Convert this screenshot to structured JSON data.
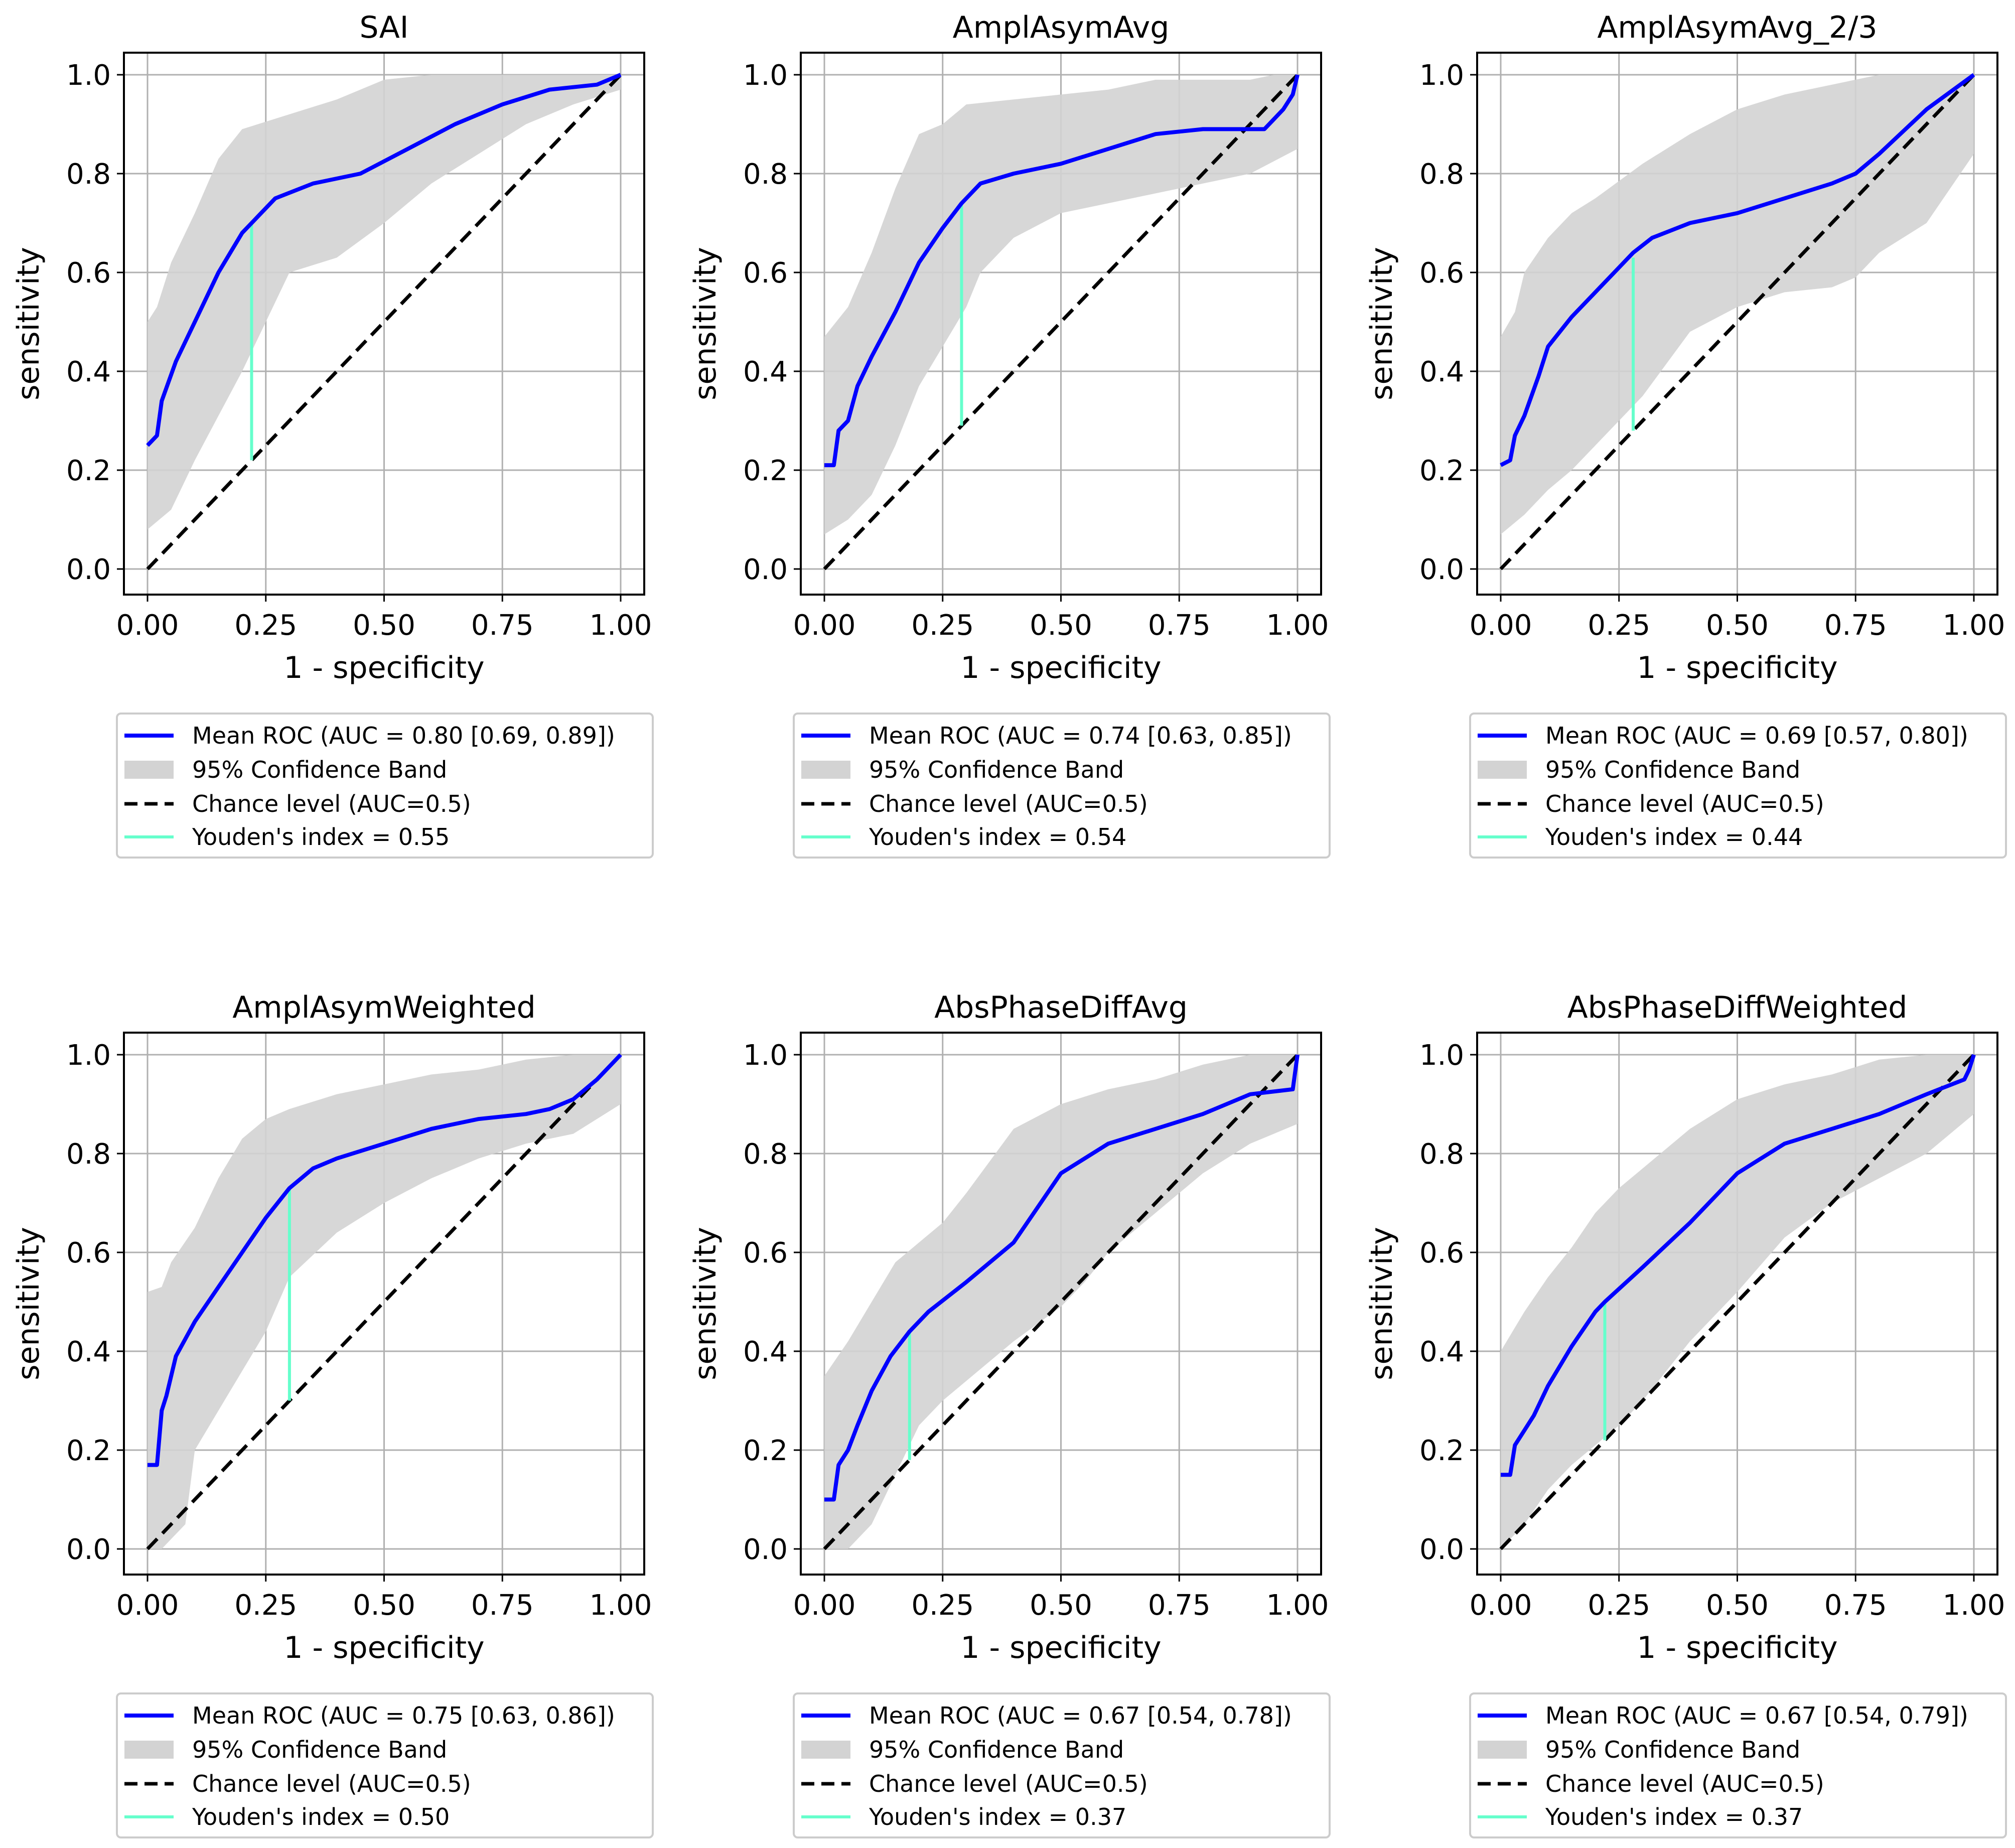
{
  "figure": {
    "colors": {
      "roc": "#0000ff",
      "band": "#d3d3d3",
      "chance": "#000000",
      "youden": "#66ffcc",
      "grid": "#b0b0b0",
      "legend_border": "#cccccc"
    }
  },
  "chart_data": [
    {
      "type": "line",
      "title": "SAI",
      "xlabel": "1 - specificity",
      "ylabel": "sensitivity",
      "xlim": [
        0,
        1
      ],
      "ylim": [
        0,
        1
      ],
      "xticks": [
        "0.00",
        "0.25",
        "0.50",
        "0.75",
        "1.00"
      ],
      "yticks": [
        "0.0",
        "0.2",
        "0.4",
        "0.6",
        "0.8",
        "1.0"
      ],
      "grid": true,
      "legend_position": "below",
      "legend": [
        "Mean ROC (AUC = 0.80 [0.69, 0.89])",
        "95% Confidence Band",
        "Chance level (AUC=0.5)",
        "Youden's index = 0.55"
      ],
      "mean_roc": {
        "x": [
          0,
          0.02,
          0.03,
          0.06,
          0.1,
          0.15,
          0.2,
          0.22,
          0.27,
          0.35,
          0.45,
          0.55,
          0.65,
          0.75,
          0.85,
          0.95,
          1.0
        ],
        "y": [
          0.25,
          0.27,
          0.34,
          0.42,
          0.5,
          0.6,
          0.68,
          0.7,
          0.75,
          0.78,
          0.8,
          0.85,
          0.9,
          0.94,
          0.97,
          0.98,
          1.0
        ]
      },
      "band_upper": {
        "x": [
          0,
          0.02,
          0.05,
          0.1,
          0.15,
          0.2,
          0.3,
          0.4,
          0.5,
          0.6,
          0.7,
          0.8,
          0.9,
          1.0
        ],
        "y": [
          0.5,
          0.53,
          0.62,
          0.72,
          0.83,
          0.89,
          0.92,
          0.95,
          0.99,
          1.0,
          1.0,
          1.0,
          1.0,
          1.0
        ]
      },
      "band_lower": {
        "x": [
          0,
          0.05,
          0.1,
          0.15,
          0.2,
          0.25,
          0.3,
          0.4,
          0.5,
          0.6,
          0.7,
          0.8,
          0.9,
          1.0
        ],
        "y": [
          0.08,
          0.12,
          0.22,
          0.31,
          0.4,
          0.5,
          0.6,
          0.63,
          0.7,
          0.78,
          0.84,
          0.9,
          0.94,
          0.97
        ]
      },
      "youden": {
        "x": 0.22,
        "y_from": 0.22,
        "y_to": 0.7
      }
    },
    {
      "type": "line",
      "title": "AmplAsymAvg",
      "xlabel": "1 - specificity",
      "ylabel": "sensitivity",
      "xlim": [
        0,
        1
      ],
      "ylim": [
        0,
        1
      ],
      "xticks": [
        "0.00",
        "0.25",
        "0.50",
        "0.75",
        "1.00"
      ],
      "yticks": [
        "0.0",
        "0.2",
        "0.4",
        "0.6",
        "0.8",
        "1.0"
      ],
      "grid": true,
      "legend_position": "below",
      "legend": [
        "Mean ROC (AUC = 0.74 [0.63, 0.85])",
        "95% Confidence Band",
        "Chance level (AUC=0.5)",
        "Youden's index = 0.54"
      ],
      "mean_roc": {
        "x": [
          0,
          0.02,
          0.03,
          0.05,
          0.07,
          0.1,
          0.15,
          0.2,
          0.25,
          0.29,
          0.33,
          0.4,
          0.5,
          0.6,
          0.7,
          0.8,
          0.88,
          0.93,
          0.97,
          0.99,
          1.0
        ],
        "y": [
          0.21,
          0.21,
          0.28,
          0.3,
          0.37,
          0.43,
          0.52,
          0.62,
          0.69,
          0.74,
          0.78,
          0.8,
          0.82,
          0.85,
          0.88,
          0.89,
          0.89,
          0.89,
          0.93,
          0.96,
          1.0
        ]
      },
      "band_upper": {
        "x": [
          0,
          0.05,
          0.1,
          0.15,
          0.2,
          0.25,
          0.3,
          0.4,
          0.5,
          0.6,
          0.7,
          0.8,
          0.9,
          0.95,
          1.0
        ],
        "y": [
          0.47,
          0.53,
          0.64,
          0.77,
          0.88,
          0.9,
          0.94,
          0.95,
          0.96,
          0.97,
          0.99,
          0.99,
          0.99,
          1.0,
          1.0
        ]
      },
      "band_lower": {
        "x": [
          0,
          0.05,
          0.1,
          0.15,
          0.2,
          0.25,
          0.3,
          0.33,
          0.4,
          0.5,
          0.6,
          0.7,
          0.8,
          0.9,
          1.0
        ],
        "y": [
          0.07,
          0.1,
          0.15,
          0.25,
          0.37,
          0.45,
          0.53,
          0.6,
          0.67,
          0.72,
          0.74,
          0.76,
          0.78,
          0.8,
          0.85
        ]
      },
      "youden": {
        "x": 0.29,
        "y_from": 0.29,
        "y_to": 0.74
      }
    },
    {
      "type": "line",
      "title": "AmplAsymAvg_2/3",
      "xlabel": "1 - specificity",
      "ylabel": "sensitivity",
      "xlim": [
        0,
        1
      ],
      "ylim": [
        0,
        1
      ],
      "xticks": [
        "0.00",
        "0.25",
        "0.50",
        "0.75",
        "1.00"
      ],
      "yticks": [
        "0.0",
        "0.2",
        "0.4",
        "0.6",
        "0.8",
        "1.0"
      ],
      "grid": true,
      "legend_position": "below",
      "legend": [
        "Mean ROC (AUC = 0.69 [0.57, 0.80])",
        "95% Confidence Band",
        "Chance level (AUC=0.5)",
        "Youden's index = 0.44"
      ],
      "mean_roc": {
        "x": [
          0,
          0.02,
          0.03,
          0.05,
          0.08,
          0.1,
          0.15,
          0.2,
          0.25,
          0.28,
          0.32,
          0.4,
          0.5,
          0.6,
          0.7,
          0.75,
          0.8,
          0.9,
          1.0
        ],
        "y": [
          0.21,
          0.22,
          0.27,
          0.31,
          0.39,
          0.45,
          0.51,
          0.56,
          0.61,
          0.64,
          0.67,
          0.7,
          0.72,
          0.75,
          0.78,
          0.8,
          0.84,
          0.93,
          1.0
        ]
      },
      "band_upper": {
        "x": [
          0,
          0.03,
          0.05,
          0.1,
          0.15,
          0.2,
          0.3,
          0.4,
          0.5,
          0.6,
          0.7,
          0.8,
          0.9,
          1.0
        ],
        "y": [
          0.47,
          0.52,
          0.6,
          0.67,
          0.72,
          0.75,
          0.82,
          0.88,
          0.93,
          0.96,
          0.98,
          1.0,
          1.0,
          1.0
        ]
      },
      "band_lower": {
        "x": [
          0,
          0.05,
          0.1,
          0.15,
          0.2,
          0.25,
          0.3,
          0.4,
          0.5,
          0.6,
          0.7,
          0.75,
          0.8,
          0.9,
          1.0
        ],
        "y": [
          0.07,
          0.11,
          0.16,
          0.2,
          0.25,
          0.3,
          0.35,
          0.48,
          0.53,
          0.56,
          0.57,
          0.59,
          0.64,
          0.7,
          0.84
        ]
      },
      "youden": {
        "x": 0.28,
        "y_from": 0.28,
        "y_to": 0.63
      }
    },
    {
      "type": "line",
      "title": "AmplAsymWeighted",
      "xlabel": "1 - specificity",
      "ylabel": "sensitivity",
      "xlim": [
        0,
        1
      ],
      "ylim": [
        0,
        1
      ],
      "xticks": [
        "0.00",
        "0.25",
        "0.50",
        "0.75",
        "1.00"
      ],
      "yticks": [
        "0.0",
        "0.2",
        "0.4",
        "0.6",
        "0.8",
        "1.0"
      ],
      "grid": true,
      "legend_position": "below",
      "legend": [
        "Mean ROC (AUC = 0.75 [0.63, 0.86])",
        "95% Confidence Band",
        "Chance level (AUC=0.5)",
        "Youden's index = 0.50"
      ],
      "mean_roc": {
        "x": [
          0,
          0.02,
          0.03,
          0.04,
          0.06,
          0.1,
          0.15,
          0.2,
          0.25,
          0.3,
          0.35,
          0.4,
          0.5,
          0.6,
          0.7,
          0.8,
          0.85,
          0.9,
          0.95,
          1.0
        ],
        "y": [
          0.17,
          0.17,
          0.28,
          0.31,
          0.39,
          0.46,
          0.53,
          0.6,
          0.67,
          0.73,
          0.77,
          0.79,
          0.82,
          0.85,
          0.87,
          0.88,
          0.89,
          0.91,
          0.95,
          1.0
        ]
      },
      "band_upper": {
        "x": [
          0,
          0.03,
          0.05,
          0.1,
          0.15,
          0.2,
          0.25,
          0.3,
          0.4,
          0.5,
          0.6,
          0.7,
          0.8,
          0.9,
          1.0
        ],
        "y": [
          0.52,
          0.53,
          0.58,
          0.65,
          0.75,
          0.83,
          0.87,
          0.89,
          0.92,
          0.94,
          0.96,
          0.97,
          0.99,
          1.0,
          1.0
        ]
      },
      "band_lower": {
        "x": [
          0,
          0.03,
          0.05,
          0.08,
          0.1,
          0.15,
          0.2,
          0.25,
          0.3,
          0.4,
          0.5,
          0.6,
          0.7,
          0.8,
          0.9,
          1.0
        ],
        "y": [
          0.0,
          0.0,
          0.02,
          0.05,
          0.2,
          0.28,
          0.36,
          0.44,
          0.55,
          0.64,
          0.7,
          0.75,
          0.79,
          0.82,
          0.84,
          0.9
        ]
      },
      "youden": {
        "x": 0.3,
        "y_from": 0.3,
        "y_to": 0.73
      }
    },
    {
      "type": "line",
      "title": "AbsPhaseDiffAvg",
      "xlabel": "1 - specificity",
      "ylabel": "sensitivity",
      "xlim": [
        0,
        1
      ],
      "ylim": [
        0,
        1
      ],
      "xticks": [
        "0.00",
        "0.25",
        "0.50",
        "0.75",
        "1.00"
      ],
      "yticks": [
        "0.0",
        "0.2",
        "0.4",
        "0.6",
        "0.8",
        "1.0"
      ],
      "grid": true,
      "legend_position": "below",
      "legend": [
        "Mean ROC (AUC = 0.67 [0.54, 0.78])",
        "95% Confidence Band",
        "Chance level (AUC=0.5)",
        "Youden's index = 0.37"
      ],
      "mean_roc": {
        "x": [
          0,
          0.02,
          0.03,
          0.05,
          0.07,
          0.1,
          0.14,
          0.18,
          0.22,
          0.3,
          0.4,
          0.5,
          0.55,
          0.6,
          0.7,
          0.8,
          0.9,
          0.99,
          1.0
        ],
        "y": [
          0.1,
          0.1,
          0.17,
          0.2,
          0.25,
          0.32,
          0.39,
          0.44,
          0.48,
          0.54,
          0.62,
          0.76,
          0.79,
          0.82,
          0.85,
          0.88,
          0.92,
          0.93,
          1.0
        ]
      },
      "band_upper": {
        "x": [
          0,
          0.05,
          0.1,
          0.15,
          0.2,
          0.25,
          0.3,
          0.4,
          0.5,
          0.6,
          0.7,
          0.8,
          0.9,
          1.0
        ],
        "y": [
          0.35,
          0.42,
          0.5,
          0.58,
          0.62,
          0.66,
          0.72,
          0.85,
          0.9,
          0.93,
          0.95,
          0.98,
          1.0,
          1.0
        ]
      },
      "band_lower": {
        "x": [
          0,
          0.05,
          0.1,
          0.15,
          0.2,
          0.25,
          0.3,
          0.4,
          0.5,
          0.55,
          0.6,
          0.7,
          0.8,
          0.9,
          1.0
        ],
        "y": [
          0.0,
          0.0,
          0.05,
          0.15,
          0.25,
          0.3,
          0.34,
          0.42,
          0.49,
          0.54,
          0.6,
          0.68,
          0.76,
          0.82,
          0.86
        ]
      },
      "youden": {
        "x": 0.18,
        "y_from": 0.18,
        "y_to": 0.44
      }
    },
    {
      "type": "line",
      "title": "AbsPhaseDiffWeighted",
      "xlabel": "1 - specificity",
      "ylabel": "sensitivity",
      "xlim": [
        0,
        1
      ],
      "ylim": [
        0,
        1
      ],
      "xticks": [
        "0.00",
        "0.25",
        "0.50",
        "0.75",
        "1.00"
      ],
      "yticks": [
        "0.0",
        "0.2",
        "0.4",
        "0.6",
        "0.8",
        "1.0"
      ],
      "grid": true,
      "legend_position": "below",
      "legend": [
        "Mean ROC (AUC = 0.67 [0.54, 0.79])",
        "95% Confidence Band",
        "Chance level (AUC=0.5)",
        "Youden's index = 0.37"
      ],
      "mean_roc": {
        "x": [
          0,
          0.02,
          0.03,
          0.05,
          0.07,
          0.1,
          0.15,
          0.2,
          0.22,
          0.3,
          0.4,
          0.5,
          0.6,
          0.7,
          0.8,
          0.9,
          0.98,
          0.99,
          1.0
        ],
        "y": [
          0.15,
          0.15,
          0.21,
          0.24,
          0.27,
          0.33,
          0.41,
          0.48,
          0.5,
          0.57,
          0.66,
          0.76,
          0.82,
          0.85,
          0.88,
          0.92,
          0.95,
          0.97,
          1.0
        ]
      },
      "band_upper": {
        "x": [
          0,
          0.05,
          0.1,
          0.15,
          0.2,
          0.25,
          0.3,
          0.4,
          0.5,
          0.6,
          0.7,
          0.8,
          0.9,
          1.0
        ],
        "y": [
          0.4,
          0.48,
          0.55,
          0.61,
          0.68,
          0.73,
          0.77,
          0.85,
          0.91,
          0.94,
          0.96,
          0.99,
          1.0,
          1.0
        ]
      },
      "band_lower": {
        "x": [
          0,
          0.05,
          0.1,
          0.15,
          0.2,
          0.25,
          0.3,
          0.4,
          0.5,
          0.6,
          0.7,
          0.8,
          0.9,
          1.0
        ],
        "y": [
          0.0,
          0.05,
          0.12,
          0.17,
          0.21,
          0.25,
          0.3,
          0.42,
          0.52,
          0.63,
          0.7,
          0.75,
          0.8,
          0.88
        ]
      },
      "youden": {
        "x": 0.22,
        "y_from": 0.22,
        "y_to": 0.5
      }
    }
  ]
}
